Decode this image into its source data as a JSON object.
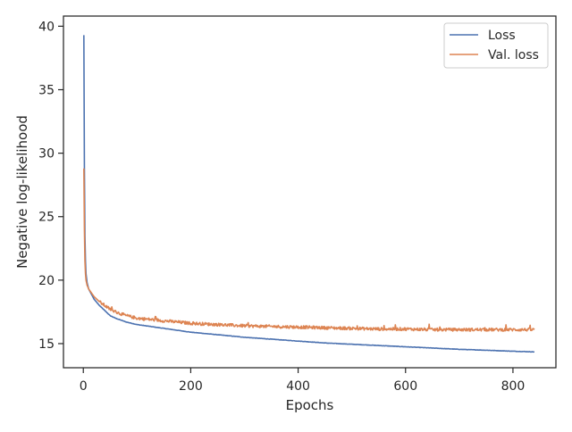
{
  "chart_data": {
    "type": "line",
    "title": "",
    "xlabel": "Epochs",
    "ylabel": "Negative log-likelihood",
    "xlim": [
      -37,
      880
    ],
    "ylim": [
      13.1,
      40.8
    ],
    "xticks": [
      0,
      200,
      400,
      600,
      800
    ],
    "yticks": [
      15,
      20,
      25,
      30,
      35,
      40
    ],
    "grid": false,
    "legend_position": "upper right",
    "series": [
      {
        "name": "Loss",
        "color": "#4c72b0",
        "x": [
          1,
          2,
          3,
          4,
          5,
          7,
          10,
          15,
          20,
          30,
          40,
          50,
          60,
          80,
          100,
          150,
          200,
          250,
          300,
          350,
          400,
          450,
          500,
          550,
          600,
          650,
          700,
          750,
          800,
          840
        ],
        "y": [
          39.3,
          29.0,
          23.5,
          21.5,
          20.5,
          19.8,
          19.3,
          18.9,
          18.5,
          18.0,
          17.6,
          17.2,
          17.0,
          16.7,
          16.5,
          16.2,
          15.9,
          15.7,
          15.5,
          15.35,
          15.2,
          15.05,
          14.95,
          14.85,
          14.75,
          14.65,
          14.55,
          14.48,
          14.4,
          14.35
        ]
      },
      {
        "name": "Val. loss",
        "color": "#dd8452",
        "x": [
          1,
          2,
          3,
          4,
          5,
          7,
          10,
          15,
          20,
          30,
          40,
          50,
          60,
          80,
          100,
          150,
          200,
          250,
          300,
          350,
          400,
          450,
          500,
          550,
          600,
          650,
          700,
          750,
          800,
          840
        ],
        "y": [
          28.8,
          24.0,
          21.5,
          20.5,
          20.0,
          19.6,
          19.3,
          19.0,
          18.7,
          18.3,
          18.0,
          17.7,
          17.5,
          17.2,
          17.0,
          16.8,
          16.6,
          16.5,
          16.4,
          16.35,
          16.3,
          16.25,
          16.2,
          16.15,
          16.15,
          16.1,
          16.1,
          16.1,
          16.1,
          16.1
        ],
        "noise": 0.12
      }
    ]
  }
}
